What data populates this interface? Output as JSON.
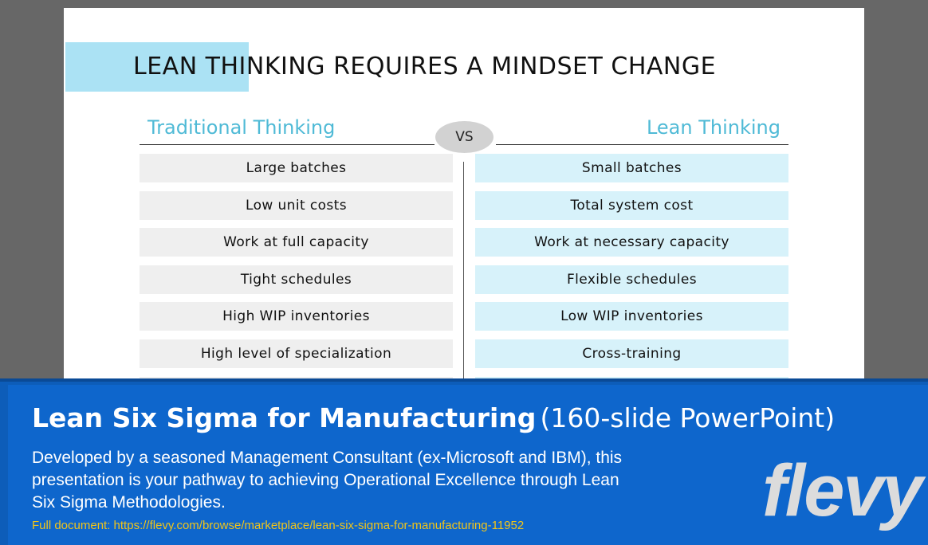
{
  "slide": {
    "title": "LEAN THINKING REQUIRES A MINDSET CHANGE",
    "left_header": "Traditional Thinking",
    "right_header": "Lean Thinking",
    "vs_label": "VS",
    "left_items": [
      "Large batches",
      "Low unit costs",
      "Work at full capacity",
      "Tight schedules",
      "High WIP inventories",
      "High level of specialization"
    ],
    "right_items": [
      "Small batches",
      "Total system cost",
      "Work at necessary capacity",
      "Flexible schedules",
      "Low WIP inventories",
      "Cross-training"
    ]
  },
  "banner": {
    "title_bold": "Lean Six Sigma for Manufacturing",
    "title_light": "(160-slide PowerPoint)",
    "description": "Developed by a seasoned Management Consultant (ex-Microsoft and IBM), this presentation is your pathway to achieving Operational Excellence through Lean Six Sigma Methodologies.",
    "link_text": "Full document: https://flevy.com/browse/marketplace/lean-six-sigma-for-manufacturing-11952",
    "logo_text": "flevy"
  },
  "colors": {
    "accent_blue": "#4fbad6",
    "title_highlight": "#abe2f4",
    "banner_blue": "#0e66cc",
    "link_yellow": "#f0c419"
  }
}
